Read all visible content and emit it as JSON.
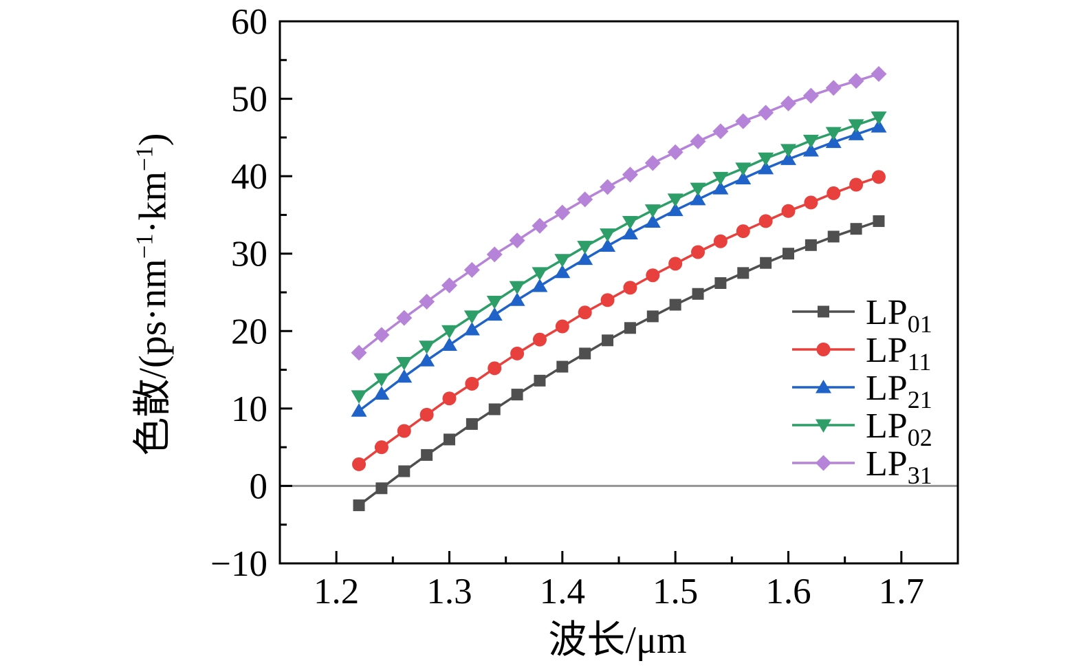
{
  "figure": {
    "background": "#ffffff"
  },
  "axes": {
    "x": {
      "title": "波长/μm",
      "range": [
        1.15,
        1.75
      ],
      "tick_values": [
        1.2,
        1.3,
        1.4,
        1.5,
        1.6,
        1.7
      ],
      "tick_labels": [
        "1.2",
        "1.3",
        "1.4",
        "1.5",
        "1.6",
        "1.7"
      ],
      "minor_tick_values": [
        1.25,
        1.35,
        1.45,
        1.55,
        1.65
      ]
    },
    "y": {
      "title_segments": [
        {
          "text": "色散/(ps·nm",
          "sup": false
        },
        {
          "text": "−1",
          "sup": true
        },
        {
          "text": "·km",
          "sup": false
        },
        {
          "text": "−1",
          "sup": true
        },
        {
          "text": ")",
          "sup": false
        }
      ],
      "range": [
        -10,
        60
      ],
      "tick_values": [
        60,
        50,
        40,
        30,
        20,
        10,
        0,
        -10
      ],
      "tick_labels": [
        "60",
        "50",
        "40",
        "30",
        "20",
        "10",
        "0",
        "−10"
      ],
      "minor_tick_values": [
        55,
        45,
        35,
        25,
        15,
        5,
        -5
      ]
    },
    "zero_line": {
      "value": 0,
      "color": "#949494"
    }
  },
  "legend": {
    "entries": [
      {
        "label": "LP",
        "subscript": "01"
      },
      {
        "label": "LP",
        "subscript": "11"
      },
      {
        "label": "LP",
        "subscript": "21"
      },
      {
        "label": "LP",
        "subscript": "02"
      },
      {
        "label": "LP",
        "subscript": "31"
      }
    ]
  },
  "chart_data": {
    "type": "line",
    "title": "",
    "xlabel": "波长/μm",
    "ylabel": "色散/(ps·nm−1·km−1)",
    "xlim": [
      1.15,
      1.75
    ],
    "ylim": [
      -10,
      60
    ],
    "grid": false,
    "legend_position": "right-middle",
    "x": [
      1.22,
      1.24,
      1.26,
      1.28,
      1.3,
      1.32,
      1.34,
      1.36,
      1.38,
      1.4,
      1.42,
      1.44,
      1.46,
      1.48,
      1.5,
      1.52,
      1.54,
      1.56,
      1.58,
      1.6,
      1.62,
      1.64,
      1.66,
      1.68
    ],
    "series": [
      {
        "name": "LP01",
        "marker": "square",
        "color": "#4f4f4f",
        "values": [
          -2.5,
          -0.3,
          1.9,
          4.0,
          6.0,
          8.0,
          9.9,
          11.8,
          13.6,
          15.4,
          17.1,
          18.8,
          20.4,
          21.9,
          23.4,
          24.8,
          26.2,
          27.5,
          28.8,
          30.0,
          31.1,
          32.2,
          33.2,
          34.2
        ]
      },
      {
        "name": "LP11",
        "marker": "circle",
        "color": "#e7403d",
        "values": [
          2.8,
          5.0,
          7.1,
          9.2,
          11.3,
          13.2,
          15.2,
          17.1,
          18.9,
          20.6,
          22.4,
          24.0,
          25.6,
          27.2,
          28.7,
          30.2,
          31.6,
          32.9,
          34.2,
          35.5,
          36.6,
          37.8,
          38.9,
          39.9
        ]
      },
      {
        "name": "LP21",
        "marker": "triangle-up",
        "color": "#1f63c9",
        "values": [
          9.7,
          11.9,
          14.1,
          16.2,
          18.2,
          20.2,
          22.1,
          24.0,
          25.8,
          27.6,
          29.3,
          31.0,
          32.6,
          34.1,
          35.6,
          37.0,
          38.4,
          39.7,
          41.0,
          42.2,
          43.3,
          44.4,
          45.4,
          46.4
        ]
      },
      {
        "name": "LP02",
        "marker": "triangle-down",
        "color": "#2d9e68",
        "values": [
          11.6,
          13.8,
          15.9,
          18.0,
          20.0,
          21.9,
          23.8,
          25.7,
          27.5,
          29.2,
          30.9,
          32.5,
          34.1,
          35.6,
          37.0,
          38.4,
          39.8,
          41.0,
          42.3,
          43.4,
          44.6,
          45.6,
          46.6,
          47.6
        ]
      },
      {
        "name": "LP31",
        "marker": "diamond",
        "color": "#b583d7",
        "values": [
          17.2,
          19.5,
          21.7,
          23.8,
          25.9,
          27.9,
          29.9,
          31.7,
          33.6,
          35.3,
          37.0,
          38.6,
          40.2,
          41.7,
          43.1,
          44.5,
          45.8,
          47.1,
          48.2,
          49.4,
          50.4,
          51.4,
          52.3,
          53.2
        ]
      }
    ],
    "colors": {
      "frame": "#000000",
      "zero_line": "#949494",
      "text": "#000000",
      "background": "#ffffff"
    }
  }
}
